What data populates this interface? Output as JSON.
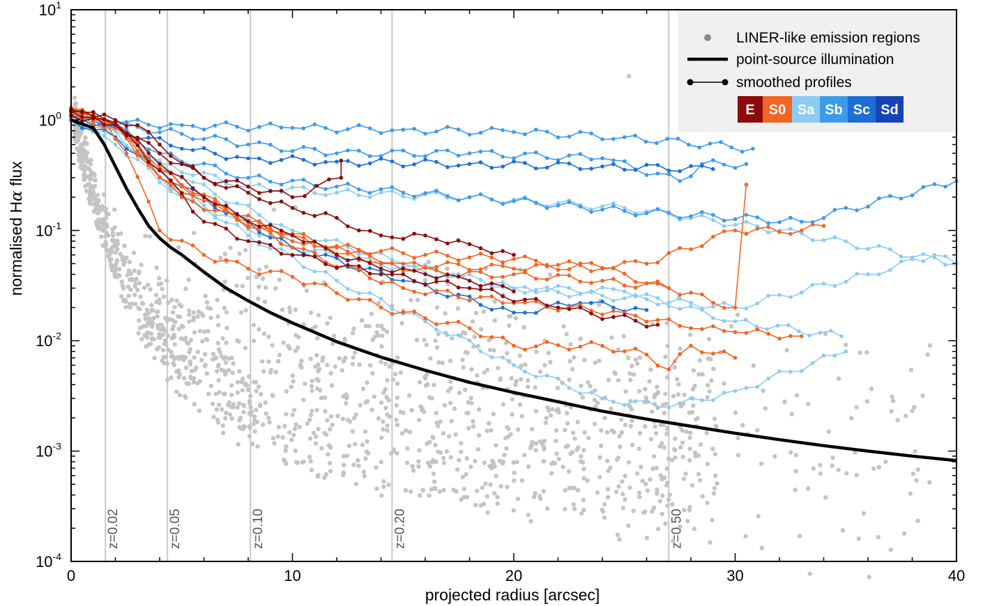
{
  "chart_data": {
    "type": "scatter",
    "xlabel": "projected radius [arcsec]",
    "ylabel_prefix": "normalised H",
    "ylabel_greek": "α",
    "ylabel_suffix": " flux",
    "xlim": [
      0,
      40
    ],
    "ylim": [
      0.0001,
      10
    ],
    "yscale": "log",
    "x_ticks": [
      0,
      10,
      20,
      30,
      40
    ],
    "y_ticks": [
      {
        "value": 0.0001,
        "base": "10",
        "exp": "-4"
      },
      {
        "value": 0.001,
        "base": "10",
        "exp": "-3"
      },
      {
        "value": 0.01,
        "base": "10",
        "exp": "-2"
      },
      {
        "value": 0.1,
        "base": "10",
        "exp": "-1"
      },
      {
        "value": 1,
        "base": "10",
        "exp": "0"
      },
      {
        "value": 10,
        "base": "10",
        "exp": "1"
      }
    ],
    "redshift_lines": [
      {
        "x": 1.55,
        "label": "z=0.02"
      },
      {
        "x": 4.35,
        "label": "z=0.05"
      },
      {
        "x": 8.1,
        "label": "z=0.10"
      },
      {
        "x": 14.5,
        "label": "z=0.20"
      },
      {
        "x": 27.0,
        "label": "z=0.50"
      }
    ],
    "legend": {
      "placement": "top-right",
      "scatter_label": "LINER-like emission regions",
      "line_label": "point-source illumination",
      "profile_label": "smoothed profiles",
      "types": [
        {
          "label": "E",
          "color": "#8b0a0a"
        },
        {
          "label": "S0",
          "color": "#f26522"
        },
        {
          "label": "Sa",
          "color": "#8ecbf2"
        },
        {
          "label": "Sb",
          "color": "#3d9be9"
        },
        {
          "label": "Sc",
          "color": "#1c6fd6"
        },
        {
          "label": "Sd",
          "color": "#1543b8"
        }
      ]
    },
    "point_source_illumination": {
      "x": [
        0,
        1,
        1.5,
        2,
        2.5,
        3,
        3.5,
        4,
        4.5,
        5,
        6,
        7,
        8,
        9,
        10,
        12,
        14,
        16,
        18,
        20,
        22,
        24,
        26,
        28,
        30,
        32,
        34,
        36,
        38,
        40
      ],
      "y": [
        1.0,
        0.85,
        0.6,
        0.38,
        0.24,
        0.16,
        0.11,
        0.085,
        0.07,
        0.06,
        0.042,
        0.03,
        0.023,
        0.018,
        0.0145,
        0.0098,
        0.0071,
        0.0054,
        0.0042,
        0.0034,
        0.0028,
        0.0023,
        0.00195,
        0.00168,
        0.00145,
        0.00127,
        0.00112,
        0.001,
        0.0009,
        0.00082
      ]
    },
    "profile_series": [
      {
        "type": "Sb",
        "x": [
          0,
          2,
          5,
          10,
          15,
          20,
          25,
          30.8
        ],
        "y": [
          1.0,
          0.95,
          0.9,
          0.85,
          0.82,
          0.78,
          0.7,
          0.55
        ]
      },
      {
        "type": "Sb",
        "x": [
          0,
          2,
          5,
          8,
          12,
          18,
          24,
          27.5,
          28.5,
          30.5
        ],
        "y": [
          1.05,
          0.9,
          0.75,
          0.6,
          0.5,
          0.5,
          0.45,
          0.28,
          0.4,
          0.4
        ]
      },
      {
        "type": "Sc",
        "x": [
          0,
          2,
          5,
          8,
          12,
          18,
          24,
          29
        ],
        "y": [
          1.1,
          0.85,
          0.55,
          0.45,
          0.42,
          0.4,
          0.38,
          0.36
        ]
      },
      {
        "type": "Sb",
        "x": [
          0,
          2,
          4,
          8,
          12,
          18,
          25,
          33,
          40
        ],
        "y": [
          1.2,
          0.9,
          0.5,
          0.3,
          0.25,
          0.2,
          0.15,
          0.12,
          0.28
        ]
      },
      {
        "type": "Sa",
        "x": [
          0,
          2,
          4,
          8,
          12,
          18,
          25,
          32,
          40
        ],
        "y": [
          1.1,
          0.8,
          0.4,
          0.25,
          0.22,
          0.2,
          0.16,
          0.1,
          0.05
        ]
      },
      {
        "type": "Sa",
        "x": [
          0,
          2,
          5,
          10,
          15,
          20,
          25,
          30,
          34.8
        ],
        "y": [
          1.0,
          0.7,
          0.3,
          0.1,
          0.05,
          0.03,
          0.028,
          0.015,
          0.011
        ]
      },
      {
        "type": "Sa",
        "x": [
          0,
          2,
          4,
          8,
          12,
          16,
          20,
          24,
          27,
          30,
          35
        ],
        "y": [
          1.0,
          0.8,
          0.3,
          0.09,
          0.035,
          0.015,
          0.006,
          0.003,
          0.0025,
          0.0035,
          0.008
        ]
      },
      {
        "type": "Sa",
        "x": [
          0,
          2,
          5,
          10,
          20,
          30,
          36,
          39,
          40
        ],
        "y": [
          1.0,
          0.6,
          0.2,
          0.07,
          0.03,
          0.02,
          0.04,
          0.06,
          0.05
        ]
      },
      {
        "type": "Sc",
        "x": [
          0,
          2,
          5,
          10,
          15,
          20,
          23,
          26
        ],
        "y": [
          1.0,
          0.7,
          0.25,
          0.07,
          0.035,
          0.018,
          0.022,
          0.019
        ]
      },
      {
        "type": "S0",
        "x": [
          0,
          1.5,
          2.5,
          4,
          6,
          8,
          10,
          14,
          18,
          20,
          24,
          26,
          27,
          28,
          30
        ],
        "y": [
          1.15,
          1.0,
          0.5,
          0.1,
          0.06,
          0.045,
          0.038,
          0.02,
          0.013,
          0.009,
          0.009,
          0.0075,
          0.0055,
          0.009,
          0.007
        ]
      },
      {
        "type": "S0",
        "x": [
          0,
          2,
          5,
          10,
          15,
          20,
          26,
          30,
          33,
          34
        ],
        "y": [
          1.2,
          0.9,
          0.2,
          0.08,
          0.05,
          0.045,
          0.05,
          0.1,
          0.1,
          0.11
        ]
      },
      {
        "type": "S0",
        "x": [
          0,
          2,
          5,
          10,
          15,
          20,
          25,
          28,
          30,
          33
        ],
        "y": [
          1.25,
          0.9,
          0.25,
          0.07,
          0.03,
          0.022,
          0.018,
          0.013,
          0.012,
          0.011
        ]
      },
      {
        "type": "S0",
        "x": [
          0,
          2,
          4,
          8,
          12,
          16,
          20,
          24,
          27
        ],
        "y": [
          1.1,
          0.85,
          0.35,
          0.12,
          0.07,
          0.06,
          0.055,
          0.045,
          0.03
        ]
      },
      {
        "type": "S0",
        "x": [
          0,
          2,
          4,
          7,
          10,
          14,
          17,
          20,
          24,
          27,
          30,
          30.5
        ],
        "y": [
          1.3,
          0.9,
          0.3,
          0.15,
          0.09,
          0.05,
          0.04,
          0.04,
          0.035,
          0.03,
          0.02,
          0.26
        ]
      },
      {
        "type": "E",
        "x": [
          0,
          2,
          3,
          4,
          6,
          8,
          10,
          12,
          13,
          14,
          16,
          18,
          20
        ],
        "y": [
          1.2,
          1.0,
          0.9,
          0.6,
          0.3,
          0.22,
          0.16,
          0.13,
          0.1,
          0.09,
          0.09,
          0.075,
          0.06
        ]
      },
      {
        "type": "E",
        "x": [
          0,
          2,
          4,
          6,
          8,
          10,
          12.2,
          12.2
        ],
        "y": [
          1.1,
          0.9,
          0.5,
          0.3,
          0.25,
          0.2,
          0.3,
          0.43
        ]
      },
      {
        "type": "E",
        "x": [
          0,
          2,
          4,
          6,
          8,
          10,
          12,
          14,
          16,
          18,
          20
        ],
        "y": [
          1.25,
          0.95,
          0.4,
          0.2,
          0.12,
          0.09,
          0.06,
          0.045,
          0.04,
          0.035,
          0.028
        ]
      },
      {
        "type": "E",
        "x": [
          0,
          2,
          4,
          6,
          8,
          10,
          14,
          18,
          22,
          26.5
        ],
        "y": [
          1.2,
          0.9,
          0.35,
          0.12,
          0.08,
          0.06,
          0.04,
          0.03,
          0.02,
          0.014
        ]
      }
    ],
    "scatter_points_note": "LINER-like emission region points generated deterministically in the drawing script"
  }
}
